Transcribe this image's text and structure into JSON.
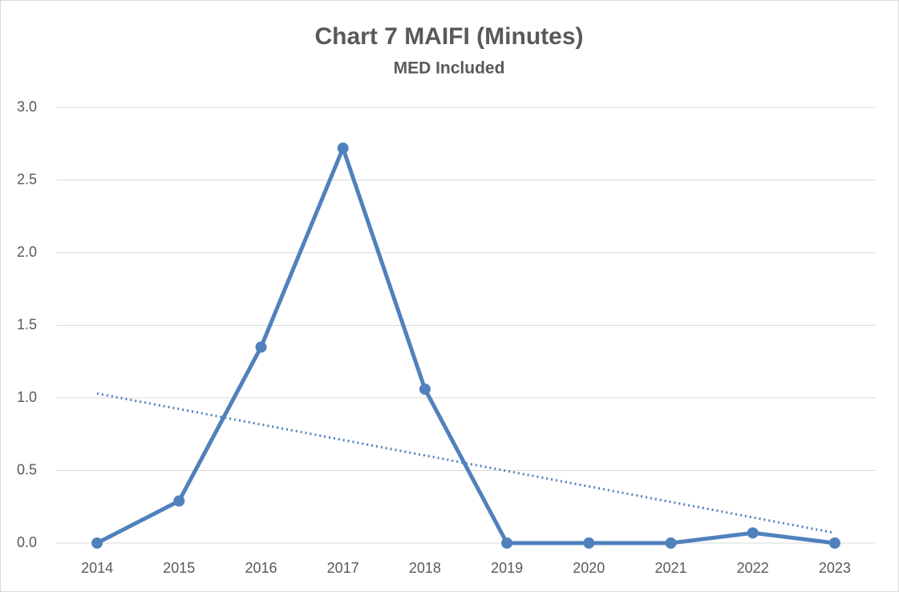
{
  "chart_data": {
    "type": "line",
    "title": "Chart 7 MAIFI (Minutes)",
    "subtitle": "MED Included",
    "categories": [
      "2014",
      "2015",
      "2016",
      "2017",
      "2018",
      "2019",
      "2020",
      "2021",
      "2022",
      "2023"
    ],
    "series": [
      {
        "color": "#4f81bd",
        "values": [
          0,
          0.29,
          1.35,
          2.72,
          1.06,
          0,
          0,
          0,
          0.07,
          0
        ]
      }
    ],
    "trendline": {
      "color": "#4f81bd",
      "values": [
        1.03,
        0.07
      ]
    },
    "ylim": [
      0,
      3
    ],
    "yticks": [
      {
        "value": 0,
        "label": "0.0"
      },
      {
        "value": 0.5,
        "label": "0.5"
      },
      {
        "value": 1,
        "label": "1.0"
      },
      {
        "value": 1.5,
        "label": "1.5"
      },
      {
        "value": 2,
        "label": "2.0"
      },
      {
        "value": 2.5,
        "label": "2.5"
      },
      {
        "value": 3,
        "label": "3.0"
      }
    ],
    "grid": true
  }
}
